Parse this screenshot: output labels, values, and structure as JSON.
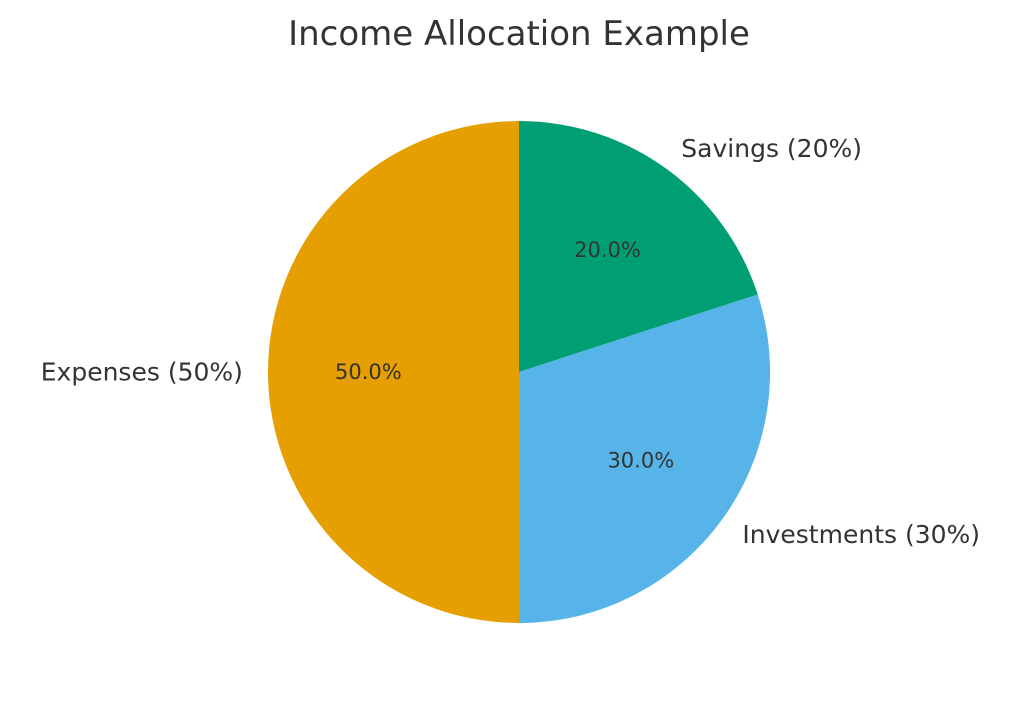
{
  "chart_data": {
    "type": "pie",
    "title": "Income Allocation Example",
    "start_angle_deg": 90,
    "direction": "clockwise",
    "slices": [
      {
        "label": "Savings (20%)",
        "value": 20,
        "pct_label": "20.0%",
        "color": "#009E73"
      },
      {
        "label": "Investments (30%)",
        "value": 30,
        "pct_label": "30.0%",
        "color": "#56B4E9"
      },
      {
        "label": "Expenses (50%)",
        "value": 50,
        "pct_label": "50.0%",
        "color": "#E69F00"
      }
    ]
  }
}
